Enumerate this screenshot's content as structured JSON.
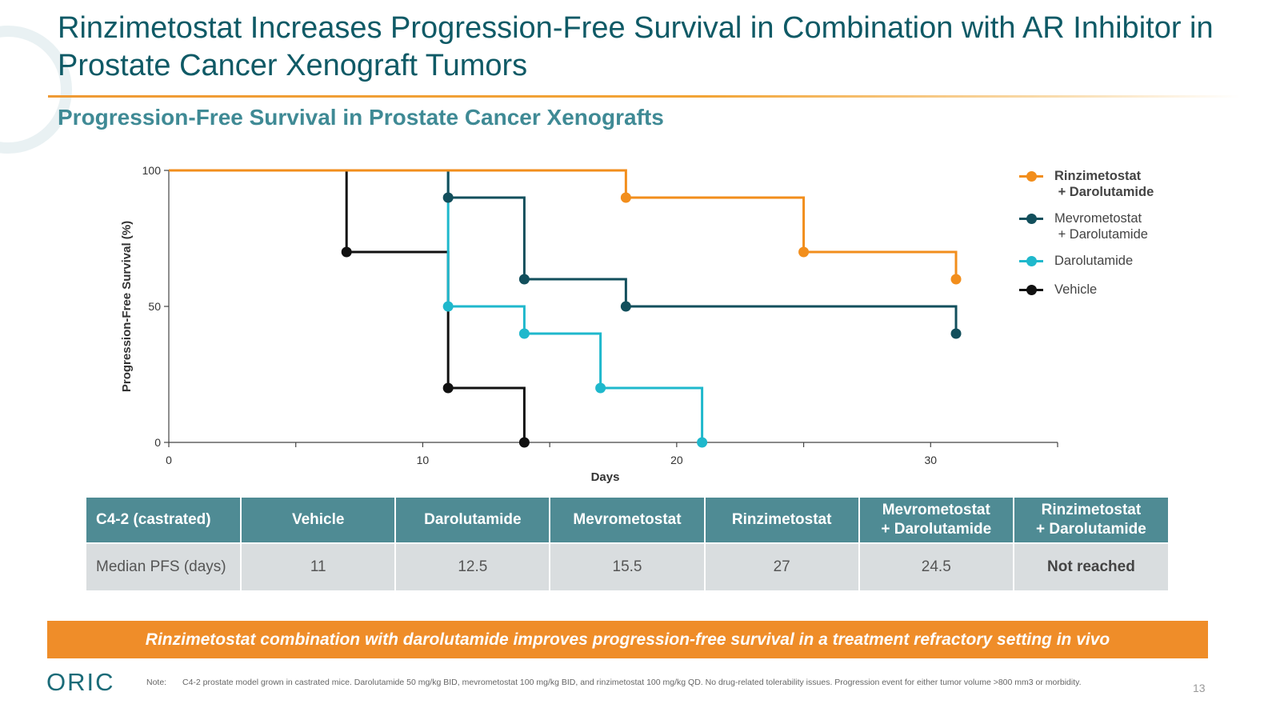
{
  "header": {
    "title": "Rinzimetostat Increases Progression-Free Survival in Combination with AR Inhibitor in Prostate Cancer Xenograft Tumors",
    "subtitle": "Progression-Free Survival in Prostate Cancer Xenografts"
  },
  "chart_data": {
    "type": "line",
    "step": true,
    "xlabel": "Days",
    "ylabel": "Progression-Free Survival (%)",
    "xlim": [
      0,
      35
    ],
    "ylim": [
      0,
      100
    ],
    "xticks": [
      0,
      10,
      20,
      30
    ],
    "minor_xticks": [
      5,
      15,
      25,
      35
    ],
    "yticks": [
      0,
      50,
      100
    ],
    "grid": false,
    "legend_position": "right",
    "series": [
      {
        "name": "Rinzimetostat\n + Darolutamide",
        "color": "#f28e1c",
        "bold": true,
        "x": [
          0,
          18,
          25,
          31
        ],
        "y": [
          100,
          90,
          70,
          60
        ]
      },
      {
        "name": "Mevrometostat\n + Darolutamide",
        "color": "#124f5c",
        "bold": false,
        "x": [
          0,
          11,
          14,
          18,
          31
        ],
        "y": [
          100,
          90,
          60,
          50,
          40
        ]
      },
      {
        "name": "Darolutamide",
        "color": "#1fb8cc",
        "bold": false,
        "x": [
          0,
          11,
          14,
          17,
          21
        ],
        "y": [
          100,
          50,
          40,
          20,
          0
        ]
      },
      {
        "name": "Vehicle",
        "color": "#111111",
        "bold": false,
        "x": [
          0,
          7,
          11,
          14
        ],
        "y": [
          100,
          70,
          20,
          0
        ]
      }
    ]
  },
  "table": {
    "headers": [
      "C4-2 (castrated)",
      "Vehicle",
      "Darolutamide",
      "Mevrometostat",
      "Rinzimetostat",
      "Mevrometostat\n+ Darolutamide",
      "Rinzimetostat\n+ Darolutamide"
    ],
    "row": [
      "Median PFS (days)",
      "11",
      "12.5",
      "15.5",
      "27",
      "24.5",
      "Not reached"
    ]
  },
  "banner": "Rinzimetostat combination with darolutamide improves progression-free survival in a treatment refractory setting in vivo",
  "footer": {
    "logo": "ORIC",
    "note_label": "Note:",
    "note": "C4-2 prostate model grown in castrated mice. Darolutamide 50 mg/kg BID, mevrometostat 100 mg/kg BID, and rinzimetostat 100 mg/kg QD. No drug-related tolerability issues. Progression event for either tumor volume >800 mm3 or morbidity.",
    "page_number": "13"
  }
}
